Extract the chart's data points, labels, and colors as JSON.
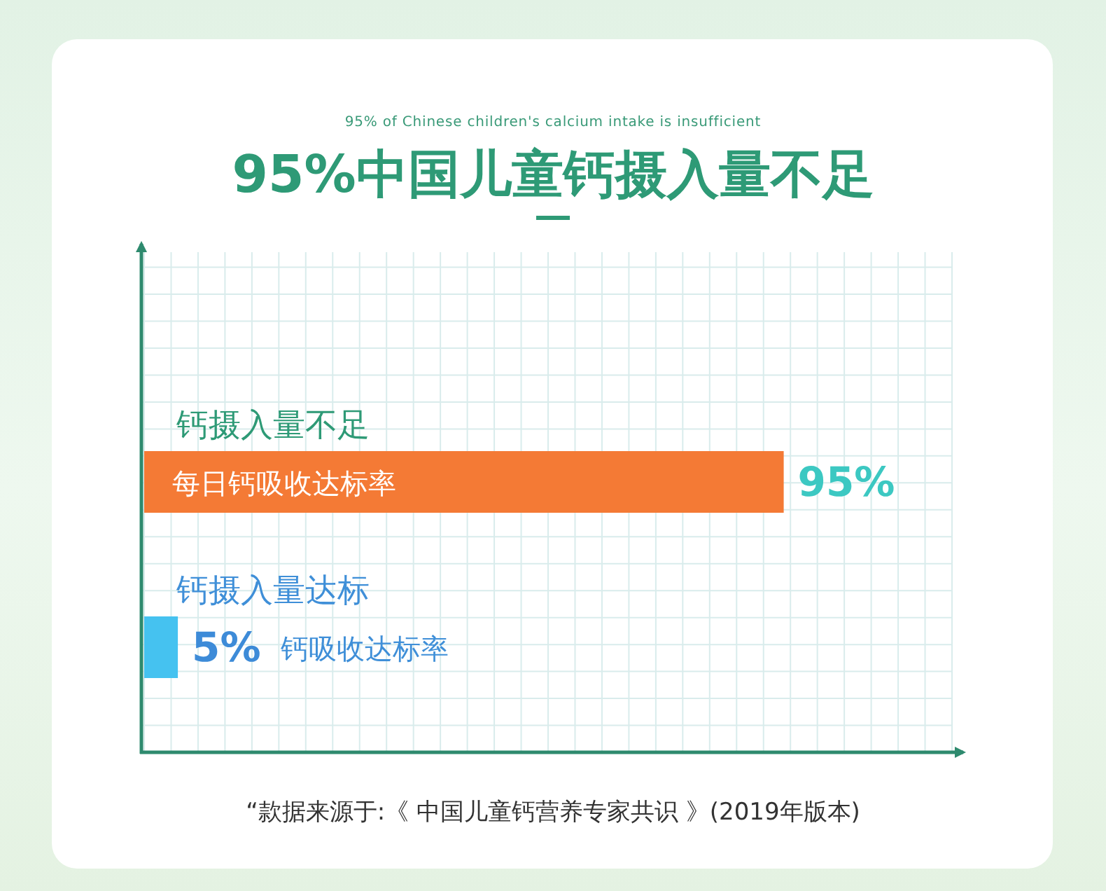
{
  "chart_data": {
    "type": "bar",
    "orientation": "horizontal",
    "title": "95%中国儿童钙摄入量不足",
    "subtitle": "95% of Chinese children's calcium intake is insufficient",
    "categories": [
      "钙摄入量不足",
      "钙摄入量达标"
    ],
    "values": [
      95,
      5
    ],
    "colors": [
      "#f47a35",
      "#45c2f0"
    ],
    "value_labels": [
      "95%",
      "5%"
    ],
    "xlim": [
      0,
      120
    ],
    "xticks": [
      {
        "value": 0,
        "label": null
      },
      {
        "value": 4,
        "label": null
      },
      {
        "value": 8,
        "label": null
      },
      {
        "value": 12,
        "label": null
      },
      {
        "value": 16,
        "label": null
      },
      {
        "value": 20,
        "label": null
      },
      {
        "value": 24,
        "label": null
      },
      {
        "value": 28,
        "label": null
      },
      {
        "value": 32,
        "label": null
      },
      {
        "value": 36,
        "label": null
      },
      {
        "value": 40,
        "label": null
      },
      {
        "value": 44,
        "label": null
      },
      {
        "value": 48,
        "label": null
      },
      {
        "value": 52,
        "label": null
      },
      {
        "value": 56,
        "label": null
      },
      {
        "value": 60,
        "label": null
      },
      {
        "value": 64,
        "label": null
      },
      {
        "value": 68,
        "label": null
      },
      {
        "value": 72,
        "label": null
      },
      {
        "value": 76,
        "label": null
      },
      {
        "value": 80,
        "label": null
      },
      {
        "value": 84,
        "label": null
      },
      {
        "value": 88,
        "label": null
      },
      {
        "value": 92,
        "label": null
      },
      {
        "value": 96,
        "label": null
      },
      {
        "value": 100,
        "label": null
      },
      {
        "value": 104,
        "label": null
      },
      {
        "value": 108,
        "label": null
      },
      {
        "value": 112,
        "label": null
      },
      {
        "value": 116,
        "label": null
      },
      {
        "value": 120,
        "label": null
      }
    ],
    "grid": true,
    "tick_labels": "y",
    "annotations": [
      "每日钙吸收达标率",
      "钙吸收达标率",
      "“款据来源于:《 中国儿童钙营养专家共识 》(2019年版本)"
    ]
  }
}
